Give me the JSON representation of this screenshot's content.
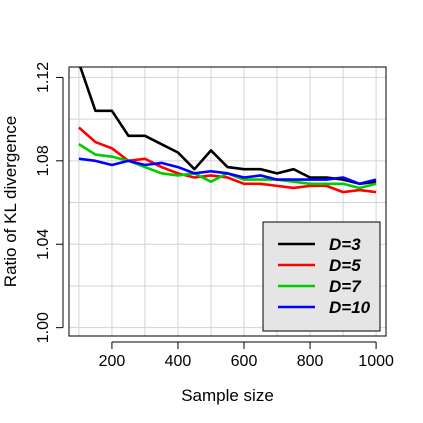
{
  "chart_data": {
    "type": "line",
    "title": "",
    "xlabel": "Sample size",
    "ylabel": "Ratio of KL divergence",
    "xlim": [
      70,
      1030
    ],
    "ylim": [
      0.996,
      1.125
    ],
    "x_ticks": [
      200,
      400,
      600,
      800,
      1000
    ],
    "x_tick_labels": [
      "200",
      "400",
      "600",
      "800",
      "1000"
    ],
    "y_ticks": [
      1.0,
      1.04,
      1.08,
      1.12
    ],
    "y_tick_labels": [
      "1.00",
      "1.04",
      "1.08",
      "1.12"
    ],
    "grid": true,
    "legend_position": "bottom-right",
    "x": [
      100,
      150,
      200,
      250,
      300,
      350,
      400,
      450,
      500,
      550,
      600,
      650,
      700,
      750,
      800,
      850,
      900,
      950,
      1000
    ],
    "series": [
      {
        "name": "D=3",
        "color": "#000000",
        "values": [
          1.127,
          1.104,
          1.104,
          1.092,
          1.092,
          1.088,
          1.084,
          1.076,
          1.085,
          1.077,
          1.076,
          1.076,
          1.074,
          1.076,
          1.072,
          1.072,
          1.071,
          1.069,
          1.07
        ]
      },
      {
        "name": "D=5",
        "color": "#ff0000",
        "values": [
          1.096,
          1.089,
          1.086,
          1.08,
          1.081,
          1.077,
          1.074,
          1.072,
          1.073,
          1.072,
          1.069,
          1.069,
          1.068,
          1.067,
          1.068,
          1.068,
          1.065,
          1.066,
          1.065
        ]
      },
      {
        "name": "D=7",
        "color": "#00cc00",
        "values": [
          1.088,
          1.083,
          1.082,
          1.08,
          1.077,
          1.074,
          1.073,
          1.074,
          1.07,
          1.074,
          1.071,
          1.071,
          1.071,
          1.07,
          1.069,
          1.069,
          1.069,
          1.067,
          1.069
        ]
      },
      {
        "name": "D=10",
        "color": "#0000ff",
        "values": [
          1.081,
          1.08,
          1.078,
          1.08,
          1.078,
          1.079,
          1.077,
          1.074,
          1.075,
          1.074,
          1.072,
          1.073,
          1.071,
          1.071,
          1.071,
          1.071,
          1.072,
          1.069,
          1.071
        ]
      }
    ]
  }
}
